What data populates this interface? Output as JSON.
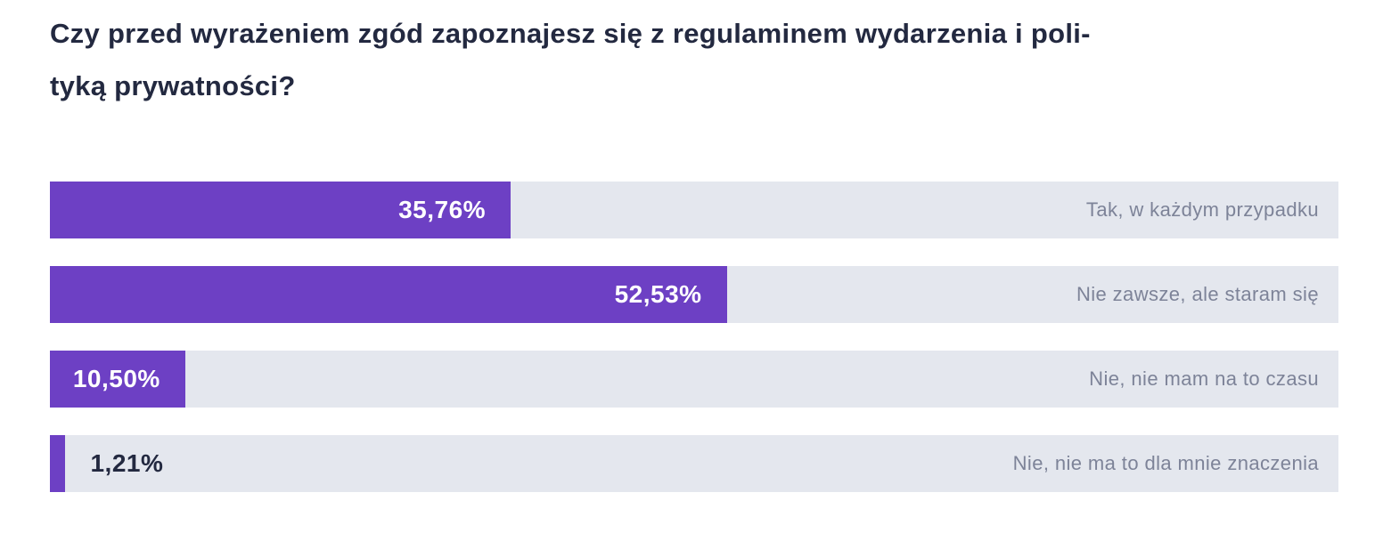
{
  "header": {
    "lines": [
      "Czy przed wyrażeniem zgód zapoznajesz się z regulaminem wydarzenia i poli-",
      "tyką prywatności?"
    ]
  },
  "colors": {
    "bar_fill": "#6d40c4",
    "bar_track": "#e4e7ee",
    "title_text": "#232940",
    "category_text": "#7d8398",
    "value_text_inside": "#ffffff",
    "value_text_outside": "#232940",
    "background": "#ffffff"
  },
  "chart_data": {
    "type": "bar",
    "orientation": "horizontal",
    "title": "Czy przed wyrażeniem zgód zapoznajesz się z regulaminem wydarzenia i polityką prywatności?",
    "xlabel": "",
    "ylabel": "",
    "xlim": [
      0,
      100
    ],
    "unit": "%",
    "grid": false,
    "legend": false,
    "categories": [
      "Tak, w każdym przypadku",
      "Nie zawsze, ale staram się",
      "Nie, nie mam na to czasu",
      "Nie, nie ma to dla mnie znaczenia"
    ],
    "values": [
      35.76,
      52.53,
      10.5,
      1.21
    ],
    "rows": [
      {
        "category": "Tak, w każdym przypadku",
        "percent": 35.76,
        "value_label": "35,76%",
        "value_inside": true
      },
      {
        "category": "Nie zawsze, ale staram się",
        "percent": 52.53,
        "value_label": "52,53%",
        "value_inside": true
      },
      {
        "category": "Nie, nie mam na to czasu",
        "percent": 10.5,
        "value_label": "10,50%",
        "value_inside": true
      },
      {
        "category": "Nie, nie ma to dla mnie znaczenia",
        "percent": 1.21,
        "value_label": "1,21%",
        "value_inside": false
      }
    ]
  }
}
